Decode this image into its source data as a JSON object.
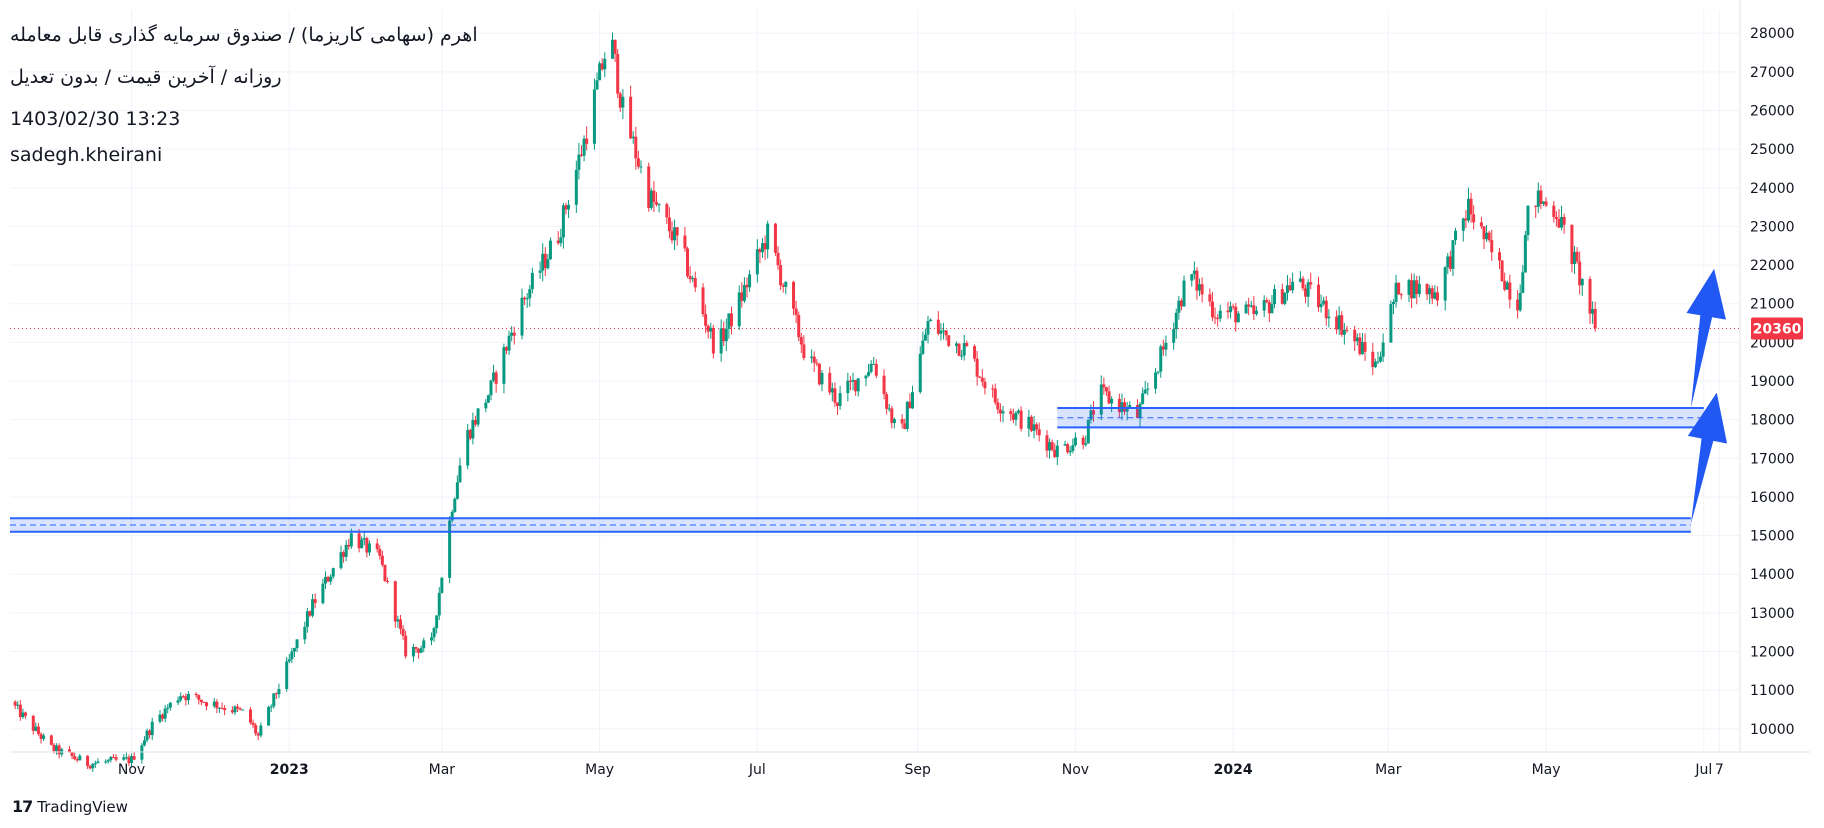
{
  "legend": {
    "title": "اهرم (سهامی کاریزما) / صندوق سرمایه گذاری قابل معامله",
    "subtitle": "روزانه / آخرین قیمت / بدون تعدیل",
    "datetime": "1403/02/30 13:23",
    "author": "sadegh.kheirani"
  },
  "brand": {
    "logo_glyph": "17",
    "name": "TradingView"
  },
  "colors": {
    "up": "#089981",
    "down": "#f23645",
    "zone": "#2962ff",
    "zone_fill": "rgba(41,98,255,0.18)",
    "arrow": "#2157f2",
    "grid": "#f0f3fa",
    "price_tag": "#f23645"
  },
  "chart_data": {
    "type": "candlestick",
    "title": "اهرم (سهامی کاریزما) / صندوق سرمایه گذاری قابل معامله",
    "x_axis": {
      "start": "2022-09-15",
      "end": "2024-07-15",
      "ticks": [
        {
          "date": "2022-11-01",
          "label": "Nov",
          "bold": false
        },
        {
          "date": "2023-01-01",
          "label": "2023",
          "bold": true
        },
        {
          "date": "2023-03-01",
          "label": "Mar",
          "bold": false
        },
        {
          "date": "2023-05-01",
          "label": "May",
          "bold": false
        },
        {
          "date": "2023-07-01",
          "label": "Jul",
          "bold": false
        },
        {
          "date": "2023-09-01",
          "label": "Sep",
          "bold": false
        },
        {
          "date": "2023-11-01",
          "label": "Nov",
          "bold": false
        },
        {
          "date": "2024-01-01",
          "label": "2024",
          "bold": true
        },
        {
          "date": "2024-03-01",
          "label": "Mar",
          "bold": false
        },
        {
          "date": "2024-05-01",
          "label": "May",
          "bold": false
        },
        {
          "date": "2024-07-01",
          "label": "Jul",
          "bold": false
        },
        {
          "date": "2024-07-07",
          "label": "7",
          "bold": false
        }
      ]
    },
    "y_axis": {
      "range": [
        9400,
        28600
      ],
      "ticks": [
        10000,
        11000,
        12000,
        13000,
        14000,
        15000,
        16000,
        17000,
        18000,
        19000,
        20000,
        21000,
        22000,
        23000,
        24000,
        25000,
        26000,
        27000,
        28000
      ],
      "position": "right"
    },
    "last_price": {
      "value": 20360,
      "label": "20360"
    },
    "price_path": [
      {
        "date": "2022-09-15",
        "price": 10700
      },
      {
        "date": "2022-10-01",
        "price": 9500
      },
      {
        "date": "2022-10-15",
        "price": 9100
      },
      {
        "date": "2022-11-01",
        "price": 9200
      },
      {
        "date": "2022-11-10",
        "price": 10200
      },
      {
        "date": "2022-11-20",
        "price": 10900
      },
      {
        "date": "2022-12-15",
        "price": 10400
      },
      {
        "date": "2022-12-20",
        "price": 9800
      },
      {
        "date": "2023-01-10",
        "price": 13200
      },
      {
        "date": "2023-01-25",
        "price": 15000
      },
      {
        "date": "2023-02-05",
        "price": 14400
      },
      {
        "date": "2023-02-15",
        "price": 12000
      },
      {
        "date": "2023-02-25",
        "price": 12200
      },
      {
        "date": "2023-03-05",
        "price": 15800
      },
      {
        "date": "2023-03-10",
        "price": 17500
      },
      {
        "date": "2023-03-20",
        "price": 18800
      },
      {
        "date": "2023-04-01",
        "price": 21000
      },
      {
        "date": "2023-04-15",
        "price": 22800
      },
      {
        "date": "2023-04-25",
        "price": 25200
      },
      {
        "date": "2023-05-05",
        "price": 28000
      },
      {
        "date": "2023-05-10",
        "price": 26000
      },
      {
        "date": "2023-05-20",
        "price": 23800
      },
      {
        "date": "2023-06-01",
        "price": 22500
      },
      {
        "date": "2023-06-15",
        "price": 19800
      },
      {
        "date": "2023-06-25",
        "price": 21200
      },
      {
        "date": "2023-07-05",
        "price": 22800
      },
      {
        "date": "2023-07-20",
        "price": 19600
      },
      {
        "date": "2023-08-01",
        "price": 18500
      },
      {
        "date": "2023-08-15",
        "price": 19500
      },
      {
        "date": "2023-08-25",
        "price": 17400
      },
      {
        "date": "2023-09-05",
        "price": 20500
      },
      {
        "date": "2023-09-20",
        "price": 19800
      },
      {
        "date": "2023-10-01",
        "price": 18500
      },
      {
        "date": "2023-10-15",
        "price": 17800
      },
      {
        "date": "2023-10-25",
        "price": 17200
      },
      {
        "date": "2023-11-05",
        "price": 17600
      },
      {
        "date": "2023-11-10",
        "price": 18700
      },
      {
        "date": "2023-11-25",
        "price": 18100
      },
      {
        "date": "2023-12-05",
        "price": 19800
      },
      {
        "date": "2023-12-15",
        "price": 21800
      },
      {
        "date": "2023-12-25",
        "price": 20800
      },
      {
        "date": "2024-01-10",
        "price": 20700
      },
      {
        "date": "2024-01-25",
        "price": 21600
      },
      {
        "date": "2024-02-10",
        "price": 20600
      },
      {
        "date": "2024-02-25",
        "price": 19400
      },
      {
        "date": "2024-03-05",
        "price": 21500
      },
      {
        "date": "2024-03-20",
        "price": 21300
      },
      {
        "date": "2024-04-01",
        "price": 23500
      },
      {
        "date": "2024-04-10",
        "price": 22300
      },
      {
        "date": "2024-04-20",
        "price": 21000
      },
      {
        "date": "2024-04-25",
        "price": 23800
      },
      {
        "date": "2024-05-05",
        "price": 23400
      },
      {
        "date": "2024-05-15",
        "price": 21500
      },
      {
        "date": "2024-05-20",
        "price": 20360
      }
    ],
    "annotations": {
      "support_zones": [
        {
          "from": "2023-10-25",
          "to": "2024-07-01",
          "low": 17800,
          "high": 18300
        },
        {
          "from": "2022-09-15",
          "to": "2024-06-26",
          "low": 15100,
          "high": 15450
        }
      ],
      "arrows": [
        {
          "from_date": "2024-06-26",
          "from_price": 18300,
          "to_date": "2024-07-05",
          "to_price": 21900
        },
        {
          "from_date": "2024-06-26",
          "from_price": 15300,
          "to_date": "2024-07-06",
          "to_price": 18700
        }
      ]
    }
  }
}
